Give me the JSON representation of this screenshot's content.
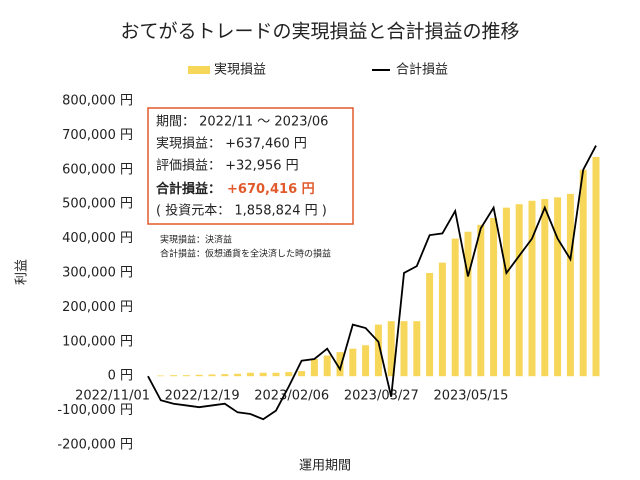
{
  "chart_data": {
    "type": "bar",
    "title": "おてがるトレードの実現損益と合計損益の推移",
    "x_label": "運用期間",
    "y_label": "利益",
    "categories": [
      "2022/11/01",
      null,
      null,
      null,
      null,
      null,
      null,
      "2022/12/19",
      null,
      null,
      null,
      null,
      null,
      null,
      "2023/02/06",
      null,
      null,
      null,
      null,
      null,
      null,
      "2023/03/27",
      null,
      null,
      null,
      null,
      null,
      null,
      "2023/05/15",
      null,
      null,
      null,
      null,
      null,
      null,
      null
    ],
    "series": [
      {
        "name": "実現損益",
        "type": "bar",
        "color": "#f7d75a",
        "values": [
          0,
          2000,
          3000,
          3000,
          4000,
          5000,
          6000,
          7000,
          10000,
          10000,
          10000,
          12000,
          15000,
          50000,
          60000,
          70000,
          80000,
          90000,
          150000,
          160000,
          160000,
          160000,
          300000,
          330000,
          400000,
          420000,
          440000,
          460000,
          490000,
          500000,
          510000,
          515000,
          520000,
          530000,
          600000,
          637460
        ]
      },
      {
        "name": "合計損益",
        "type": "line",
        "color": "#000000",
        "values": [
          0,
          -70000,
          -80000,
          -85000,
          -90000,
          -85000,
          -80000,
          -105000,
          -110000,
          -125000,
          -100000,
          -30000,
          45000,
          50000,
          80000,
          20000,
          150000,
          140000,
          100000,
          -60000,
          300000,
          320000,
          410000,
          415000,
          480000,
          290000,
          430000,
          490000,
          300000,
          350000,
          400000,
          490000,
          400000,
          340000,
          600000,
          670416
        ]
      }
    ],
    "ylim": [
      -200000,
      800000
    ],
    "yticks": [
      {
        "value": -200000,
        "label": "-200,000 円"
      },
      {
        "value": -100000,
        "label": "-100,000 円"
      },
      {
        "value": 0,
        "label": "0 円"
      },
      {
        "value": 100000,
        "label": "100,000 円"
      },
      {
        "value": 200000,
        "label": "200,000 円"
      },
      {
        "value": 300000,
        "label": "300,000 円"
      },
      {
        "value": 400000,
        "label": "400,000 円"
      },
      {
        "value": 500000,
        "label": "500,000 円"
      },
      {
        "value": 600000,
        "label": "600,000 円"
      },
      {
        "value": 700000,
        "label": "700,000 円"
      },
      {
        "value": 800000,
        "label": "800,000 円"
      }
    ],
    "grid": false,
    "legend": "top",
    "info_box": {
      "period": "期間： 2022/11 ～ 2023/06",
      "realized": "実現損益： +637,460 円",
      "unrealized": "評価損益： +32,956 円",
      "total_label": "合計損益：",
      "total_value": "+670,416 円",
      "principal": "( 投資元本： 1,858,824 円 )"
    },
    "notes": [
      "実現損益：決済益",
      "合計損益：仮想通貨を全決済した時の損益"
    ]
  }
}
